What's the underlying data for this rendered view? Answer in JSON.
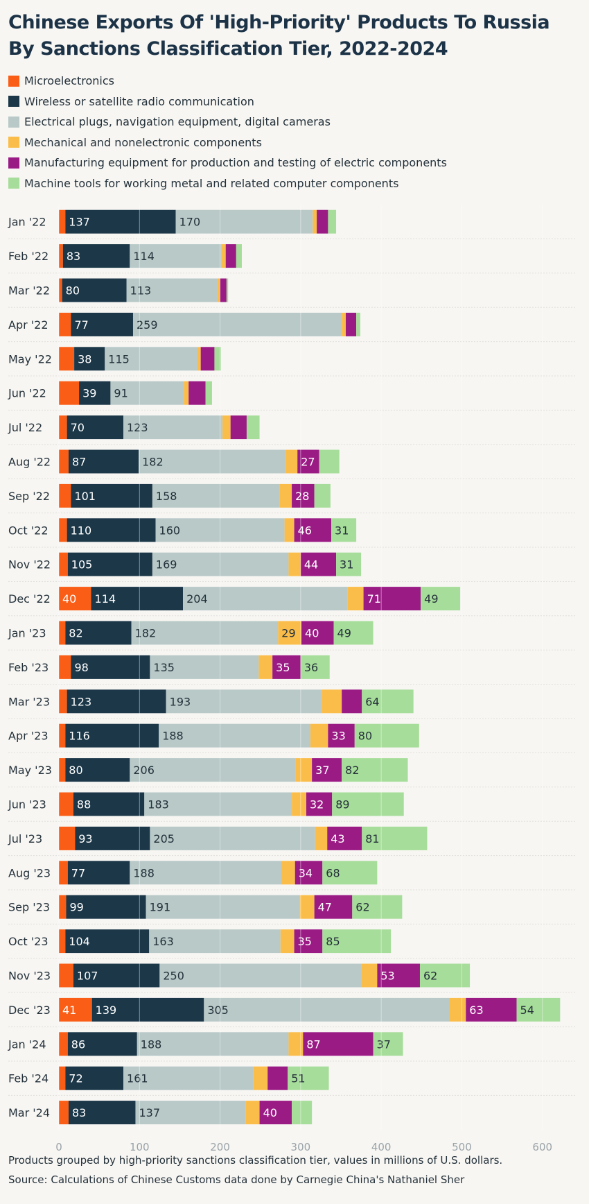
{
  "title": "Chinese Exports Of 'High-Priority' Products To Russia By Sanctions Classification Tier, 2022-2024",
  "legend": [
    {
      "label": "Microelectronics",
      "color": "#fa5d15"
    },
    {
      "label": "Wireless or satellite radio communication",
      "color": "#1b3748"
    },
    {
      "label": "Electrical plugs, navigation equipment, digital cameras",
      "color": "#b8c9c8"
    },
    {
      "label": "Mechanical and nonelectronic components",
      "color": "#fbbd4a"
    },
    {
      "label": "Manufacturing equipment for production and testing of electric components",
      "color": "#9b1b85"
    },
    {
      "label": "Machine tools for working metal and related computer components",
      "color": "#a7dd9a"
    }
  ],
  "footnote": "Products grouped by high-priority sanctions classification tier, values in millions of U.S. dollars.",
  "source": "Source: Calculations of Chinese Customs data done by Carnegie China's Nathaniel Sher",
  "chart_data": {
    "type": "bar",
    "orientation": "horizontal",
    "stacked": true,
    "xlim": [
      0,
      620
    ],
    "xticks": [
      0,
      100,
      200,
      300,
      400,
      500,
      600
    ],
    "grid": "vertical",
    "categories": [
      "Jan '22",
      "Feb '22",
      "Mar '22",
      "Apr '22",
      "May '22",
      "Jun '22",
      "Jul '22",
      "Aug '22",
      "Sep '22",
      "Oct '22",
      "Nov '22",
      "Dec '22",
      "Jan '23",
      "Feb '23",
      "Mar '23",
      "Apr '23",
      "May '23",
      "Jun '23",
      "Jul '23",
      "Aug '23",
      "Sep '23",
      "Oct '23",
      "Nov '23",
      "Dec '23",
      "Jan '24",
      "Feb '24",
      "Mar '24"
    ],
    "series": [
      {
        "name": "Microelectronics",
        "color": "#fa5d15",
        "labeled": [
          false,
          false,
          false,
          false,
          false,
          false,
          false,
          false,
          false,
          false,
          false,
          true,
          false,
          false,
          false,
          false,
          false,
          false,
          false,
          false,
          false,
          false,
          false,
          true,
          false,
          false,
          false
        ],
        "values": [
          8,
          5,
          4,
          15,
          19,
          25,
          10,
          12,
          15,
          10,
          11,
          40,
          8,
          15,
          10,
          8,
          8,
          18,
          20,
          11,
          9,
          8,
          18,
          41,
          11,
          8,
          12
        ]
      },
      {
        "name": "Wireless or satellite radio communication",
        "color": "#1b3748",
        "labeled": [
          true,
          true,
          true,
          true,
          true,
          true,
          true,
          true,
          true,
          true,
          true,
          true,
          true,
          true,
          true,
          true,
          true,
          true,
          true,
          true,
          true,
          true,
          true,
          true,
          true,
          true,
          true
        ],
        "values": [
          137,
          83,
          80,
          77,
          38,
          39,
          70,
          87,
          101,
          110,
          105,
          114,
          82,
          98,
          123,
          116,
          80,
          88,
          93,
          77,
          99,
          104,
          107,
          139,
          86,
          72,
          83
        ]
      },
      {
        "name": "Electrical plugs, navigation equipment, digital cameras",
        "color": "#b8c9c8",
        "labeled": [
          true,
          true,
          true,
          true,
          true,
          true,
          true,
          true,
          true,
          true,
          true,
          true,
          true,
          true,
          true,
          true,
          true,
          true,
          true,
          true,
          true,
          true,
          true,
          true,
          true,
          true,
          true
        ],
        "values": [
          170,
          114,
          113,
          259,
          115,
          91,
          123,
          182,
          158,
          160,
          169,
          204,
          182,
          135,
          193,
          188,
          206,
          183,
          205,
          188,
          191,
          163,
          250,
          305,
          188,
          161,
          137
        ]
      },
      {
        "name": "Mechanical and nonelectronic components",
        "color": "#fbbd4a",
        "labeled": [
          false,
          false,
          false,
          false,
          false,
          false,
          false,
          false,
          false,
          false,
          false,
          false,
          true,
          false,
          false,
          false,
          false,
          false,
          false,
          false,
          false,
          false,
          false,
          false,
          false,
          false,
          false
        ],
        "values": [
          5,
          5,
          3,
          5,
          4,
          6,
          10,
          15,
          15,
          12,
          15,
          20,
          29,
          17,
          25,
          22,
          20,
          18,
          15,
          17,
          18,
          17,
          20,
          20,
          18,
          18,
          17
        ]
      },
      {
        "name": "Manufacturing equipment for production and testing of electric components",
        "color": "#9b1b85",
        "labeled": [
          false,
          false,
          false,
          false,
          false,
          false,
          false,
          true,
          true,
          true,
          true,
          true,
          true,
          true,
          false,
          true,
          true,
          true,
          true,
          true,
          true,
          true,
          true,
          true,
          true,
          false,
          true
        ],
        "values": [
          14,
          13,
          8,
          13,
          17,
          21,
          20,
          27,
          28,
          46,
          44,
          71,
          40,
          35,
          25,
          33,
          37,
          32,
          43,
          34,
          47,
          35,
          53,
          63,
          87,
          25,
          40
        ]
      },
      {
        "name": "Machine tools for working metal and related computer components",
        "color": "#a7dd9a",
        "labeled": [
          false,
          false,
          false,
          false,
          false,
          false,
          false,
          false,
          false,
          true,
          true,
          true,
          true,
          true,
          true,
          true,
          true,
          true,
          true,
          true,
          true,
          true,
          true,
          true,
          true,
          true,
          false
        ],
        "values": [
          10,
          7,
          2,
          5,
          8,
          8,
          16,
          25,
          20,
          31,
          31,
          49,
          49,
          36,
          64,
          80,
          82,
          89,
          81,
          68,
          62,
          85,
          62,
          54,
          37,
          51,
          25
        ]
      }
    ]
  }
}
